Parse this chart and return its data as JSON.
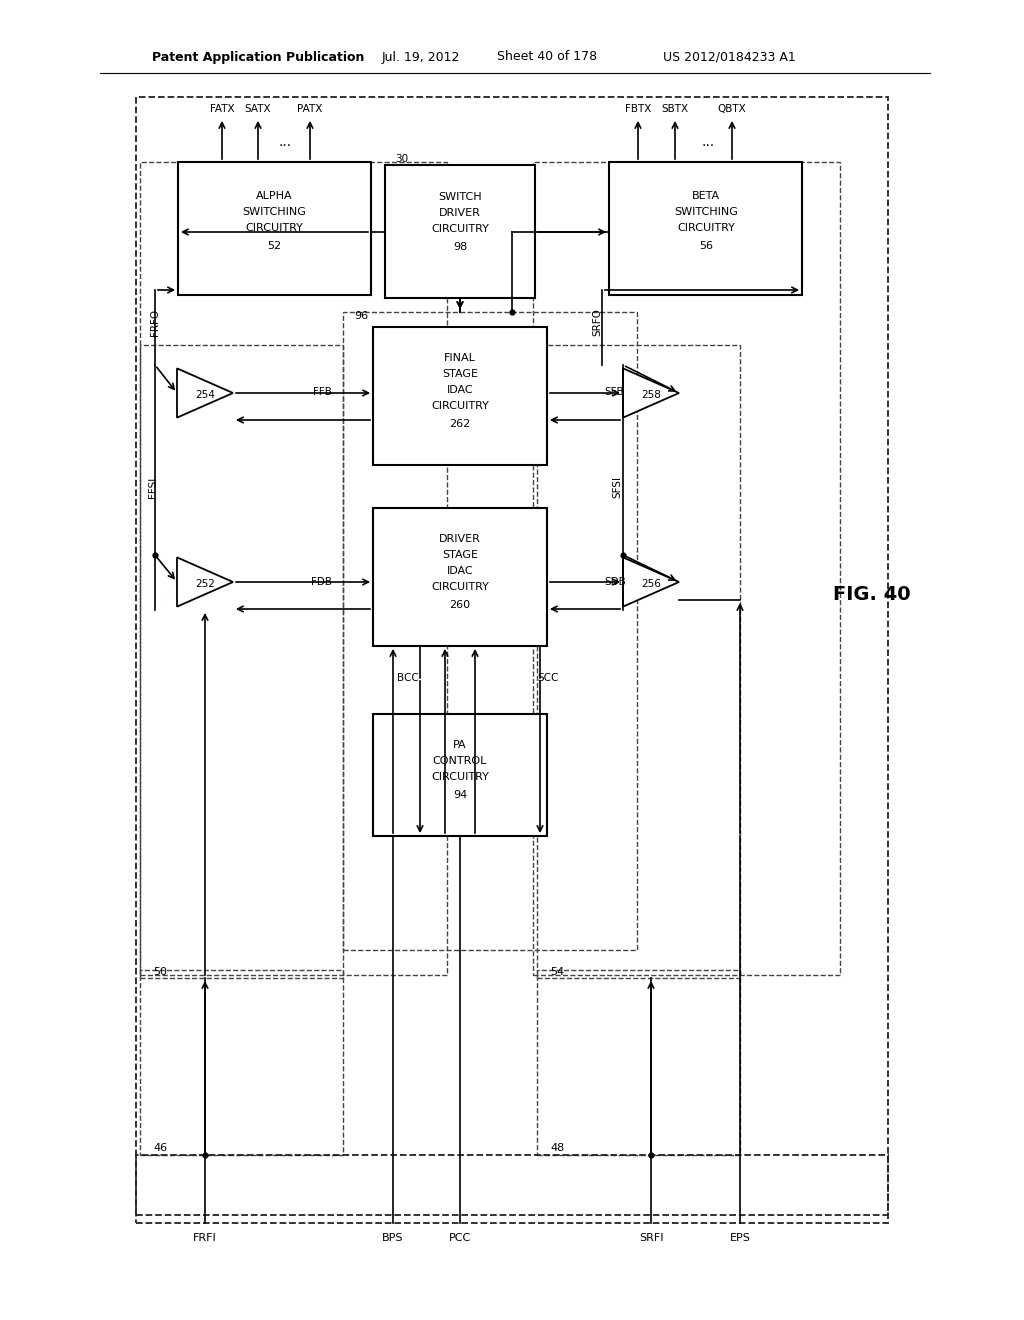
{
  "bg": "#ffffff",
  "lc": "#000000",
  "header_left": "Patent Application Publication",
  "header_mid": "Jul. 19, 2012",
  "header_sheet": "Sheet 40 of 178",
  "header_patent": "US 2012/0184233 A1",
  "fig_label": "FIG. 40"
}
